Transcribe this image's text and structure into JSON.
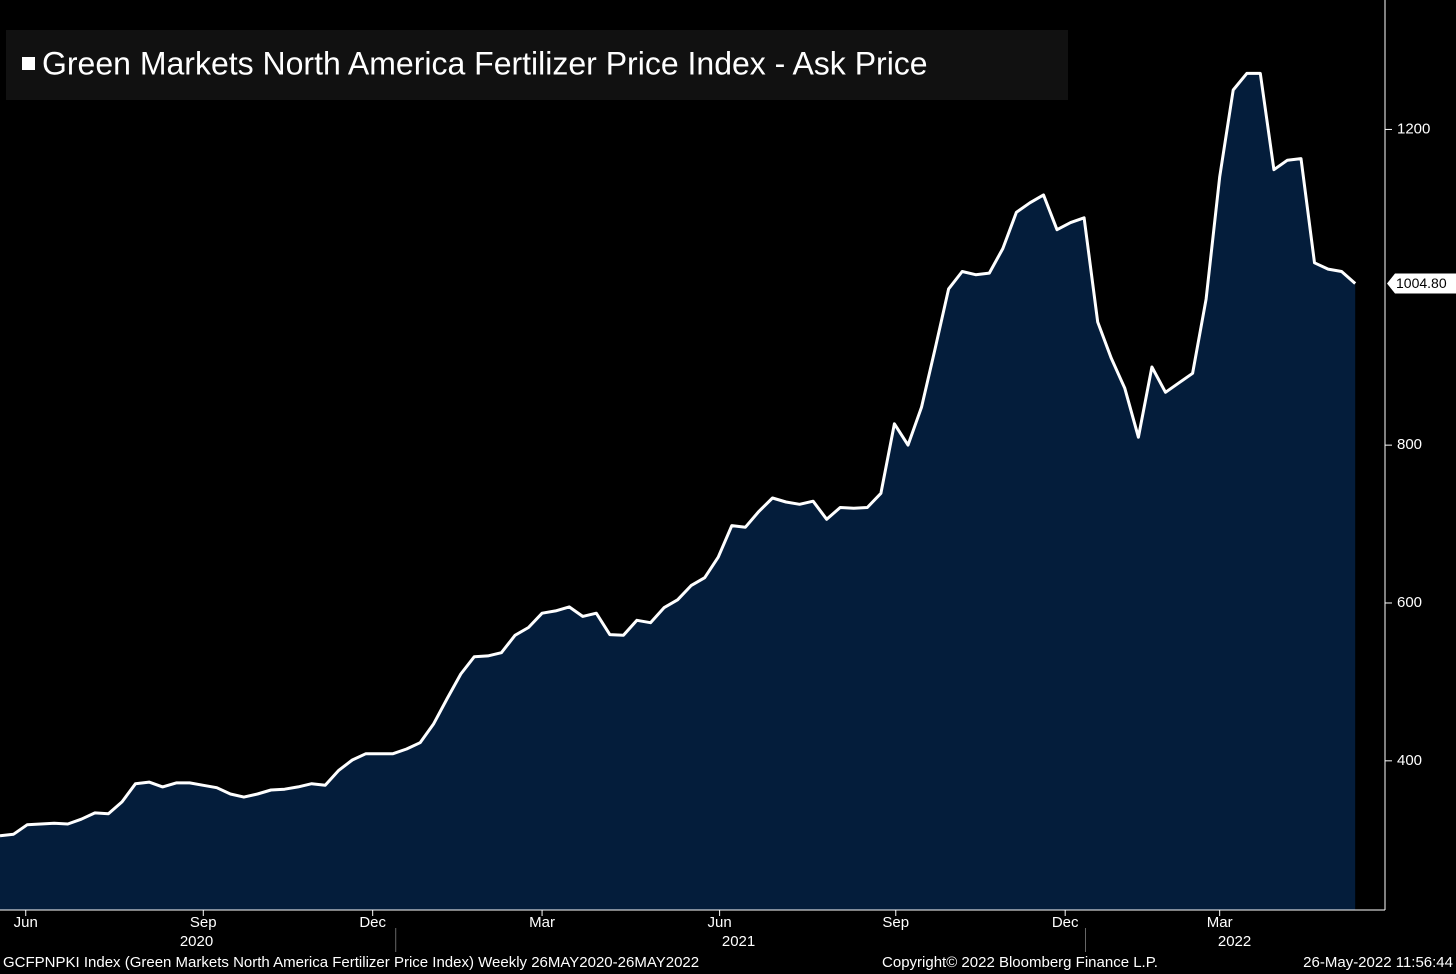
{
  "chart_data": {
    "type": "area",
    "title": "Green Markets North America Fertilizer Price Index - Ask Price",
    "values": [
      305,
      307,
      319,
      320,
      321,
      320,
      326,
      334,
      333,
      348,
      371,
      373,
      367,
      372,
      372,
      369,
      366,
      358,
      354,
      358,
      363,
      364,
      367,
      371,
      369,
      388,
      401,
      409,
      409,
      409,
      415,
      423,
      447,
      479,
      510,
      532,
      533,
      537,
      559,
      569,
      587,
      590,
      595,
      583,
      587,
      560,
      559,
      578,
      575,
      594,
      604,
      622,
      632,
      658,
      698,
      696,
      716,
      733,
      728,
      725,
      729,
      706,
      721,
      720,
      721,
      739,
      827,
      800,
      848,
      922,
      998,
      1020,
      1016,
      1018,
      1049,
      1095,
      1107,
      1117,
      1073,
      1082,
      1088,
      956,
      910,
      872,
      810,
      899,
      867,
      879,
      891,
      985,
      1140,
      1250,
      1271,
      1271,
      1149,
      1161,
      1163,
      1031,
      1023,
      1020,
      1004.8
    ],
    "last_value_label": "1004.80",
    "color": "#ffffff",
    "fill": "#041d3b",
    "xlim": [
      0,
      102.2
    ],
    "xticks": [
      {
        "value": 1.9,
        "label": "Jun"
      },
      {
        "value": 15.0,
        "label": "Sep"
      },
      {
        "value": 27.5,
        "label": "Dec"
      },
      {
        "value": 40.0,
        "label": "Mar"
      },
      {
        "value": 53.1,
        "label": "Jun"
      },
      {
        "value": 66.1,
        "label": "Sep"
      },
      {
        "value": 78.6,
        "label": "Dec"
      },
      {
        "value": 90.0,
        "label": "Mar"
      }
    ],
    "year_ticks": [
      {
        "value": 14.5,
        "label": "2020"
      },
      {
        "value": 54.5,
        "label": "2021"
      },
      {
        "value": 91.1,
        "label": "2022"
      }
    ],
    "year_separators": [
      29.2,
      80.1
    ],
    "ylim": [
      211,
      1364
    ],
    "yticks": [
      400,
      600,
      800,
      1200
    ],
    "footer_left": "GCFPNPKI Index (Green Markets North America Fertilizer Price Index)  Weekly 26MAY2020-26MAY2022",
    "footer_center": "Copyright© 2022 Bloomberg Finance L.P.",
    "footer_right": "26-May-2022 11:56:44"
  }
}
